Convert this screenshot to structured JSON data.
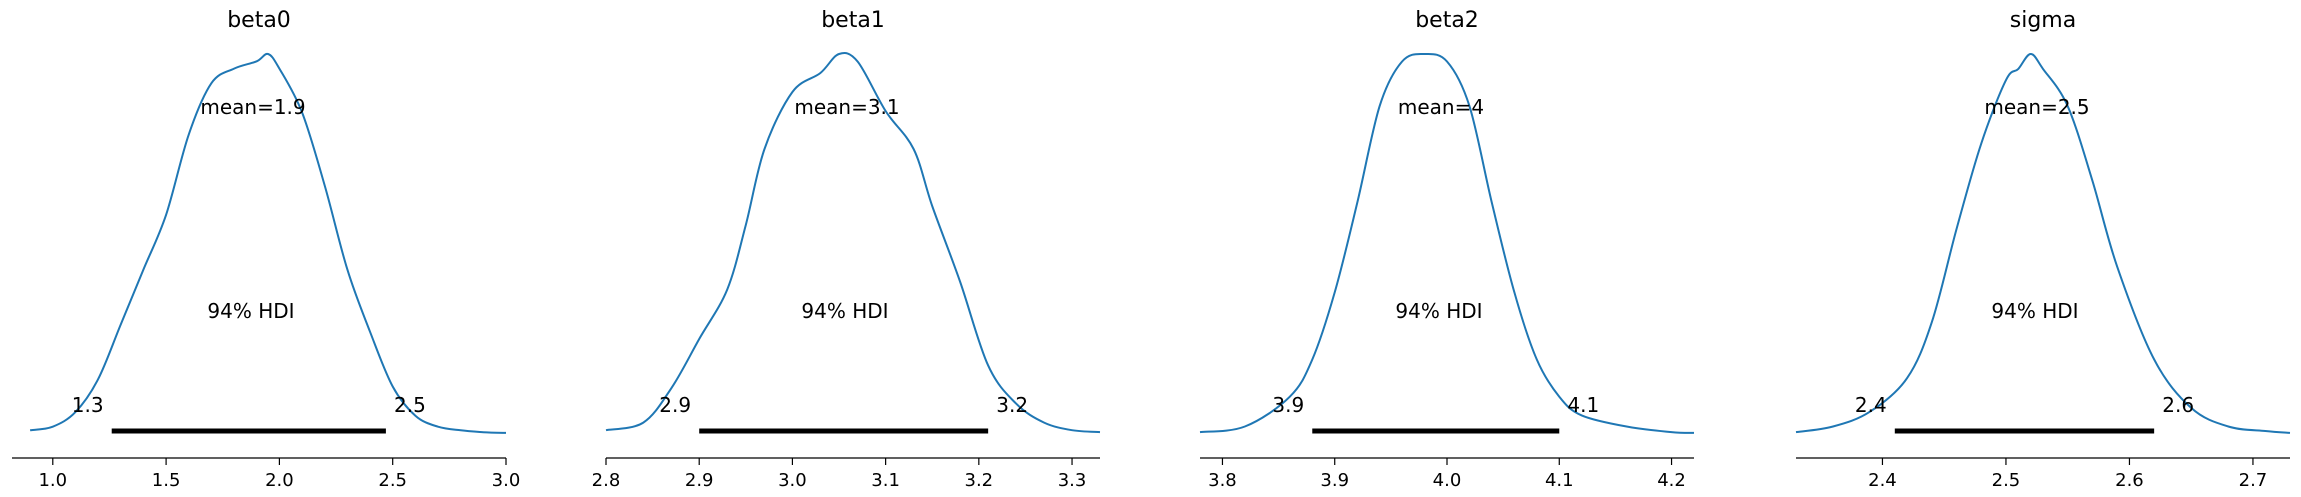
{
  "chart_data": [
    {
      "type": "line",
      "title": "beta0",
      "mean_label": "mean=1.9",
      "hdi_label": "94% HDI",
      "hdi_low_label": "1.3",
      "hdi_high_label": "2.5",
      "hdi": [
        1.26,
        2.47
      ],
      "xlim": [
        0.82,
        3.0
      ],
      "ticks": [
        1.0,
        1.5,
        2.0,
        2.5,
        3.0
      ],
      "tick_labels": [
        "1.0",
        "1.5",
        "2.0",
        "2.5",
        "3.0"
      ],
      "density": {
        "x": [
          0.9,
          1.0,
          1.1,
          1.2,
          1.3,
          1.4,
          1.5,
          1.6,
          1.7,
          1.8,
          1.9,
          1.95,
          2.0,
          2.1,
          2.2,
          2.3,
          2.4,
          2.5,
          2.6,
          2.7,
          2.8,
          2.9,
          3.0
        ],
        "y": [
          0.01,
          0.02,
          0.06,
          0.15,
          0.3,
          0.45,
          0.6,
          0.82,
          0.96,
          1.0,
          1.02,
          1.04,
          1.0,
          0.88,
          0.68,
          0.45,
          0.28,
          0.13,
          0.05,
          0.02,
          0.01,
          0.005,
          0.003
        ]
      }
    },
    {
      "type": "line",
      "title": "beta1",
      "mean_label": "mean=3.1",
      "hdi_label": "94% HDI",
      "hdi_low_label": "2.9",
      "hdi_high_label": "3.2",
      "hdi": [
        2.9,
        3.21
      ],
      "xlim": [
        2.8,
        3.33
      ],
      "ticks": [
        2.8,
        2.9,
        3.0,
        3.1,
        3.2,
        3.3
      ],
      "tick_labels": [
        "2.8",
        "2.9",
        "3.0",
        "3.1",
        "3.2",
        "3.3"
      ],
      "density": {
        "x": [
          2.8,
          2.84,
          2.87,
          2.9,
          2.93,
          2.95,
          2.97,
          3.0,
          3.03,
          3.05,
          3.07,
          3.1,
          3.13,
          3.15,
          3.18,
          3.21,
          3.24,
          3.27,
          3.3,
          3.33
        ],
        "y": [
          0.01,
          0.03,
          0.12,
          0.25,
          0.38,
          0.55,
          0.75,
          0.9,
          0.95,
          1.0,
          0.98,
          0.85,
          0.75,
          0.6,
          0.4,
          0.18,
          0.08,
          0.03,
          0.01,
          0.005
        ]
      }
    },
    {
      "type": "line",
      "title": "beta2",
      "mean_label": "mean=4",
      "hdi_label": "94% HDI",
      "hdi_low_label": "3.9",
      "hdi_high_label": "4.1",
      "hdi": [
        3.88,
        4.1
      ],
      "xlim": [
        3.78,
        4.22
      ],
      "ticks": [
        3.8,
        3.9,
        4.0,
        4.1,
        4.2
      ],
      "tick_labels": [
        "3.8",
        "3.9",
        "4.0",
        "4.1",
        "4.2"
      ],
      "density": {
        "x": [
          3.78,
          3.82,
          3.86,
          3.88,
          3.9,
          3.92,
          3.94,
          3.96,
          3.98,
          4.0,
          4.02,
          4.04,
          4.06,
          4.08,
          4.1,
          4.12,
          4.16,
          4.2,
          4.22
        ],
        "y": [
          0.005,
          0.02,
          0.1,
          0.2,
          0.38,
          0.62,
          0.88,
          1.0,
          1.02,
          1.0,
          0.88,
          0.62,
          0.38,
          0.2,
          0.1,
          0.05,
          0.02,
          0.005,
          0.003
        ]
      }
    },
    {
      "type": "line",
      "title": "sigma",
      "mean_label": "mean=2.5",
      "hdi_label": "94% HDI",
      "hdi_low_label": "2.4",
      "hdi_high_label": "2.6",
      "hdi": [
        2.41,
        2.62
      ],
      "xlim": [
        2.33,
        2.73
      ],
      "ticks": [
        2.4,
        2.5,
        2.6,
        2.7
      ],
      "tick_labels": [
        "2.4",
        "2.5",
        "2.6",
        "2.7"
      ],
      "density": {
        "x": [
          2.33,
          2.36,
          2.39,
          2.42,
          2.44,
          2.46,
          2.48,
          2.5,
          2.51,
          2.52,
          2.53,
          2.55,
          2.57,
          2.59,
          2.62,
          2.65,
          2.68,
          2.71,
          2.73
        ],
        "y": [
          0.005,
          0.02,
          0.06,
          0.15,
          0.3,
          0.55,
          0.78,
          0.95,
          0.98,
          1.02,
          0.98,
          0.88,
          0.68,
          0.45,
          0.2,
          0.07,
          0.02,
          0.008,
          0.003
        ]
      }
    }
  ],
  "colors": {
    "line": "#1f77b4",
    "hdi_bar": "#000000",
    "axis": "#000000"
  }
}
